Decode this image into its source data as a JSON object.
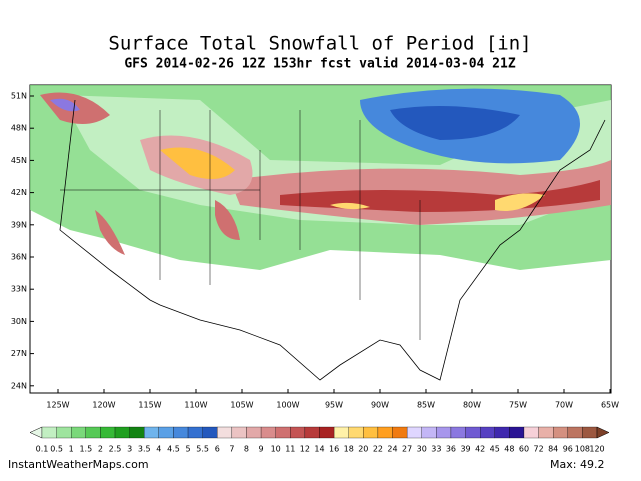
{
  "header": {
    "title": "Surface Total Snowfall of Period [in]",
    "subtitle": "GFS 2014-02-26 12Z 153hr fcst valid 2014-03-04 21Z"
  },
  "map": {
    "lat_labels": [
      "51N",
      "48N",
      "45N",
      "42N",
      "39N",
      "36N",
      "33N",
      "30N",
      "27N",
      "24N"
    ],
    "lon_labels": [
      "125W",
      "120W",
      "115W",
      "110W",
      "105W",
      "100W",
      "95W",
      "90W",
      "85W",
      "80W",
      "75W",
      "70W",
      "65W"
    ]
  },
  "legend": {
    "labels": [
      "0.1",
      "0.5",
      "1",
      "1.5",
      "2",
      "2.5",
      "3",
      "3.5",
      "4",
      "4.5",
      "5",
      "5.5",
      "6",
      "7",
      "8",
      "9",
      "10",
      "11",
      "12",
      "14",
      "16",
      "18",
      "20",
      "22",
      "24",
      "27",
      "30",
      "33",
      "36",
      "39",
      "42",
      "45",
      "48",
      "60",
      "72",
      "84",
      "96",
      "108",
      "120"
    ],
    "colors": [
      "#e6f7e6",
      "#c2efc2",
      "#9ee49e",
      "#7ad87a",
      "#56c956",
      "#36b936",
      "#1f9f1f",
      "#138313",
      "#6fb4ec",
      "#5aa0e6",
      "#4688dc",
      "#3470d0",
      "#2358bd",
      "#f3dede",
      "#ebc3c3",
      "#e2a8a8",
      "#d98c8c",
      "#cf7070",
      "#c45454",
      "#b73a3a",
      "#a82222",
      "#fff1a8",
      "#ffd970",
      "#ffbf40",
      "#ff9f20",
      "#f07a10",
      "#dfd6ff",
      "#c3b6f6",
      "#a796ec",
      "#8b78e0",
      "#6f5ad2",
      "#5640c2",
      "#3f28ae",
      "#2a1494",
      "#f6d0d8",
      "#e8b0a8",
      "#d49080",
      "#bc7460",
      "#9c5840",
      "#7c4028"
    ]
  },
  "footer": {
    "source": "InstantWeatherMaps.com",
    "max": "Max:  49.2"
  }
}
